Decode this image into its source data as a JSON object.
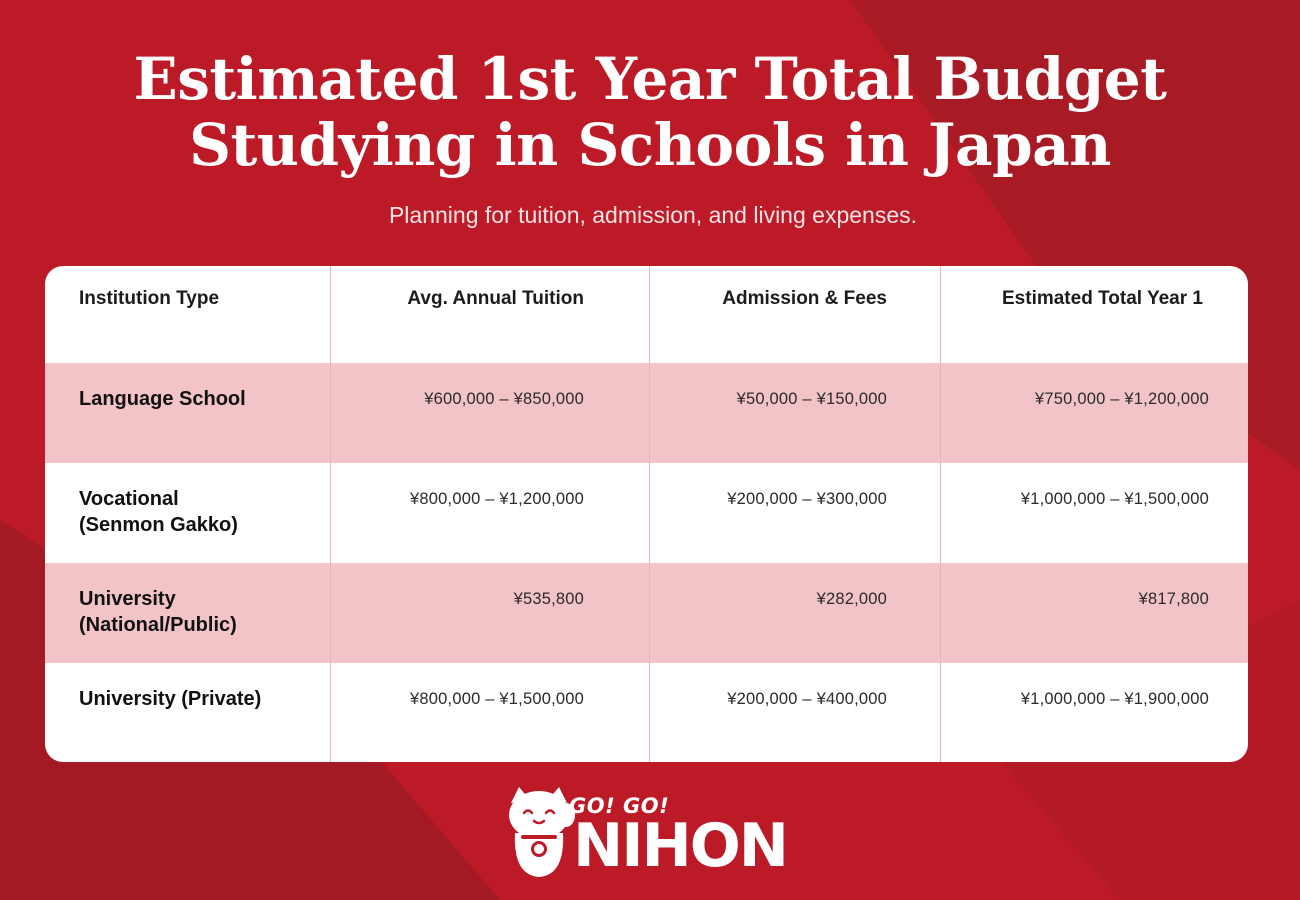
{
  "header": {
    "title_line1": "Estimated 1st Year Total Budget",
    "title_line2": "Studying in Schools in Japan",
    "subtitle": "Planning for tuition, admission, and living expenses."
  },
  "table": {
    "columns": [
      "Institution Type",
      "Avg. Annual Tuition",
      "Admission & Fees",
      "Estimated Total Year 1"
    ],
    "rows": [
      {
        "type": "Language School",
        "tuition": "¥600,000 – ¥850,000",
        "fees": "¥50,000 – ¥150,000",
        "total": "¥750,000 – ¥1,200,000"
      },
      {
        "type": "Vocational\n(Senmon Gakko)",
        "tuition": "¥800,000 – ¥1,200,000",
        "fees": "¥200,000 – ¥300,000",
        "total": "¥1,000,000 – ¥1,500,000"
      },
      {
        "type": "University\n(National/Public)",
        "tuition": "¥535,800",
        "fees": "¥282,000",
        "total": "¥817,800"
      },
      {
        "type": "University (Private)",
        "tuition": "¥800,000 – ¥1,500,000",
        "fees": "¥200,000 – ¥400,000",
        "total": "¥1,000,000 – ¥1,900,000"
      }
    ]
  },
  "logo": {
    "line1": "GO! GO!",
    "line2": "NIHON",
    "icon": "maneki-neko-icon"
  },
  "colors": {
    "background": "#bd1a27",
    "row_shade": "#f2c3c7",
    "text_light": "#ffffff"
  }
}
